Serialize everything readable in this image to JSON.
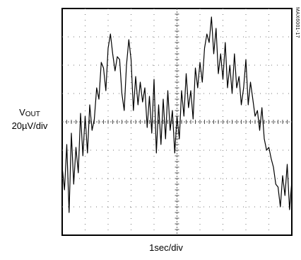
{
  "chart_data": {
    "type": "line",
    "ylabel_main": "V",
    "ylabel_sub": "OUT",
    "ylabel_scale": "20µV/div",
    "xlabel": "1sec/div",
    "figure_id": "MAX6001-17",
    "grid": true,
    "divisions": {
      "x": 10,
      "y": 8
    },
    "ylim": [
      -4,
      4
    ],
    "xlim": [
      0,
      10
    ],
    "series": [
      {
        "x": [
          0.0,
          0.1,
          0.2,
          0.3,
          0.4,
          0.5,
          0.6,
          0.7,
          0.8,
          0.9,
          1.0,
          1.1,
          1.2,
          1.3,
          1.4,
          1.5,
          1.6,
          1.7,
          1.8,
          1.9,
          2.0,
          2.1,
          2.2,
          2.3,
          2.4,
          2.5,
          2.6,
          2.7,
          2.8,
          2.9,
          3.0,
          3.1,
          3.2,
          3.3,
          3.4,
          3.5,
          3.6,
          3.7,
          3.8,
          3.9,
          4.0,
          4.1,
          4.2,
          4.3,
          4.4,
          4.5,
          4.6,
          4.7,
          4.8,
          4.9,
          5.0,
          5.1,
          5.2,
          5.3,
          5.4,
          5.5,
          5.6,
          5.7,
          5.8,
          5.9,
          6.0,
          6.1,
          6.2,
          6.3,
          6.4,
          6.5,
          6.6,
          6.7,
          6.8,
          6.9,
          7.0,
          7.1,
          7.2,
          7.3,
          7.4,
          7.5,
          7.6,
          7.7,
          7.8,
          7.9,
          8.0,
          8.1,
          8.2,
          8.3,
          8.4,
          8.5,
          8.6,
          8.7,
          8.8,
          8.9,
          9.0,
          9.1,
          9.2,
          9.3,
          9.4,
          9.5,
          9.6,
          9.7,
          9.8,
          9.9,
          10.0
        ],
        "values": [
          -1.6,
          -2.4,
          -0.8,
          -3.2,
          -0.4,
          -2.2,
          -0.9,
          -1.8,
          0.3,
          -1.2,
          0.2,
          -1.1,
          0.6,
          -0.3,
          0.1,
          1.2,
          0.8,
          2.1,
          1.9,
          1.1,
          2.6,
          3.1,
          2.4,
          1.8,
          2.3,
          2.2,
          1.0,
          0.4,
          2.0,
          2.9,
          2.2,
          0.4,
          1.6,
          0.6,
          1.4,
          0.7,
          1.2,
          -0.2,
          0.9,
          -0.4,
          1.5,
          -1.1,
          0.6,
          -0.8,
          0.8,
          -0.6,
          1.1,
          -0.3,
          0.4,
          -1.1,
          0.2,
          -0.6,
          1.1,
          0.2,
          1.7,
          0.5,
          1.1,
          0.1,
          1.9,
          1.2,
          2.1,
          1.4,
          2.6,
          3.1,
          2.8,
          3.7,
          2.4,
          3.3,
          1.7,
          2.4,
          1.5,
          2.8,
          1.2,
          2.0,
          1.0,
          2.4,
          1.2,
          1.6,
          0.6,
          1.2,
          2.2,
          0.6,
          1.4,
          0.8,
          0.2,
          0.4,
          -0.3,
          0.5,
          -0.6,
          -1.0,
          -0.9,
          -1.3,
          -1.6,
          -2.2,
          -2.3,
          -3.0,
          -1.9,
          -2.6,
          -1.5,
          -3.1,
          -2.1
        ]
      }
    ]
  }
}
